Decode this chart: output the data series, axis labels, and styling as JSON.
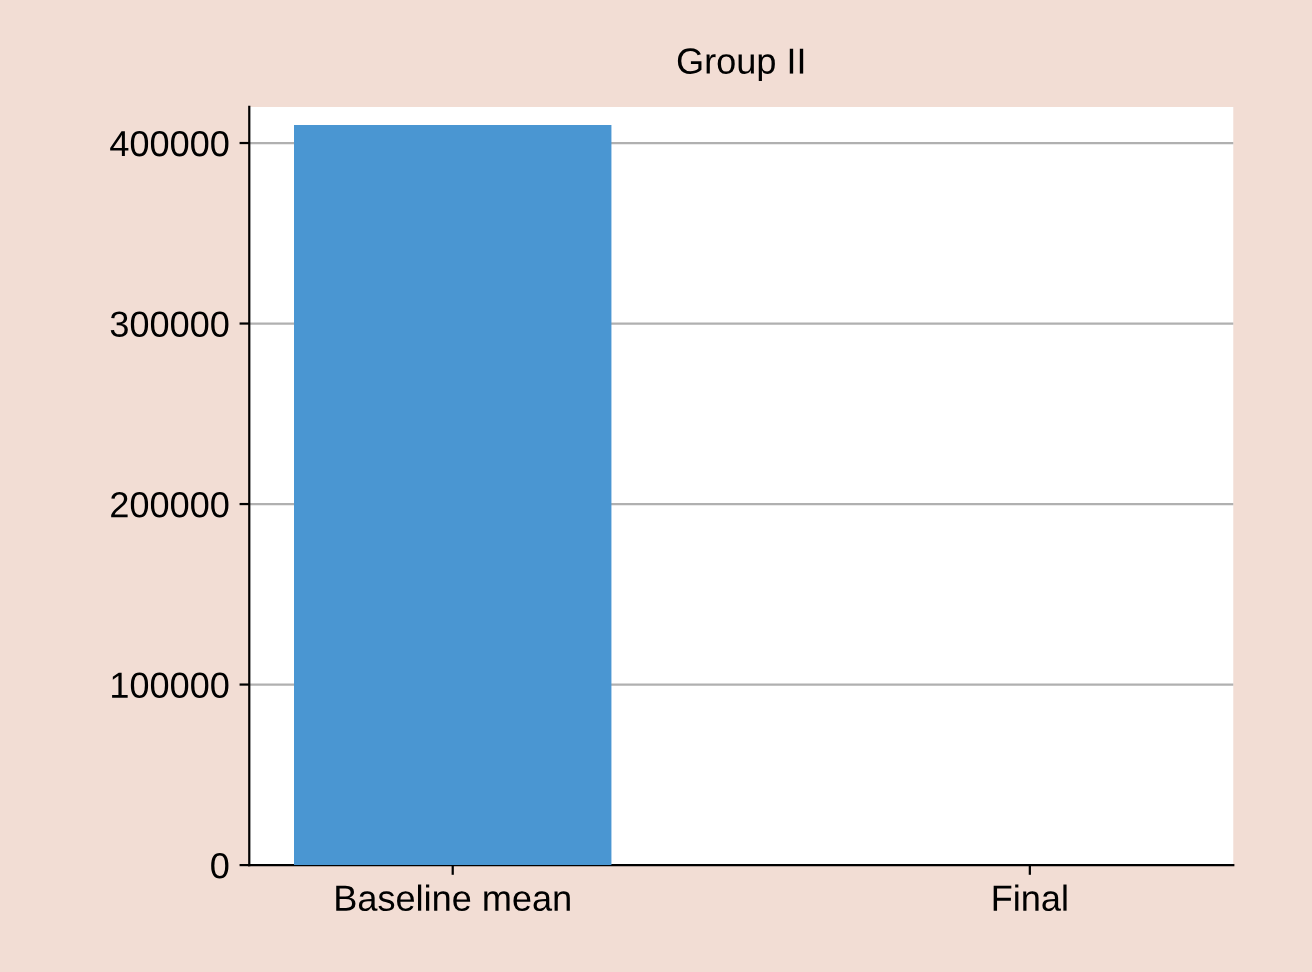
{
  "chart_data": {
    "type": "bar",
    "title": "Group II",
    "categories": [
      "Baseline mean",
      "Final"
    ],
    "values": [
      410000,
      0
    ],
    "colors": [
      "#4a96d2",
      "#d42d20"
    ],
    "ylim": [
      0,
      420000
    ],
    "yticks": [
      0,
      100000,
      200000,
      300000,
      400000
    ],
    "grid": "y"
  }
}
